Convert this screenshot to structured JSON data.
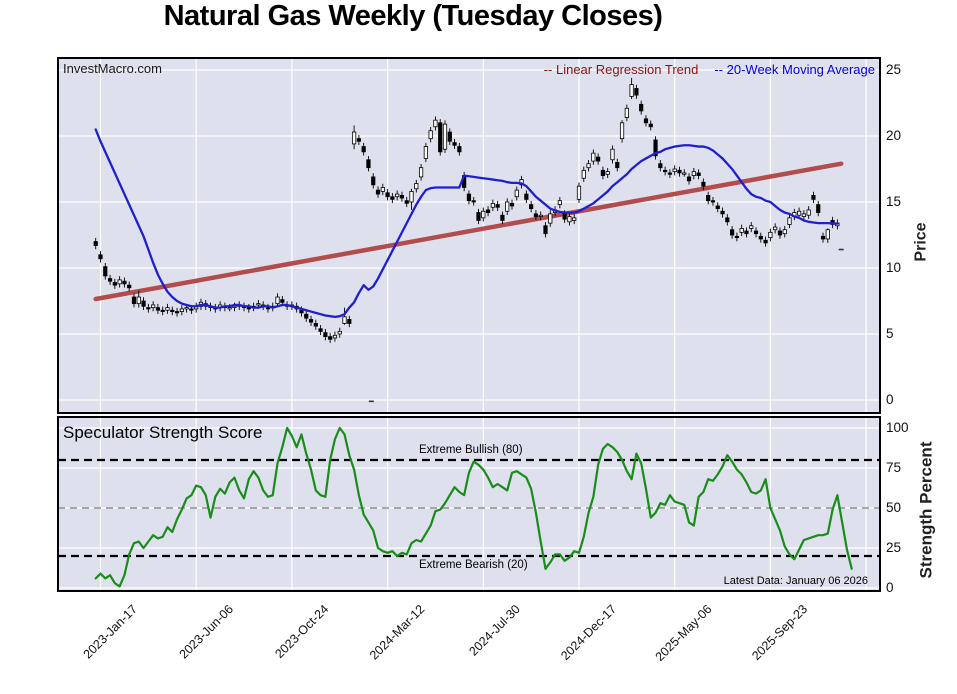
{
  "title": "Natural Gas Weekly (Tuesday Closes)",
  "watermark": "InvestMacro.com",
  "legend": {
    "regression_label": "-- Linear Regression Trend",
    "ma_label": "-- 20-Week Moving Average",
    "regression_text_color": "#8b1212",
    "ma_text_color": "#0000e6"
  },
  "price_panel": {
    "ylabel": "Price",
    "yticks": [
      0,
      5,
      10,
      15,
      20,
      25
    ]
  },
  "strength_panel": {
    "title": "Speculator Strength Score",
    "ylabel": "Strength Percent",
    "yticks": [
      0,
      25,
      50,
      75,
      100
    ],
    "upper_label": "Extreme Bullish (80)",
    "lower_label": "Extreme Bearish (20)",
    "latest_note": "Latest Data: January 06 2026"
  },
  "x_axis": {
    "labels": [
      "2023-Jan-17",
      "2023-Jun-06",
      "2023-Oct-24",
      "2024-Mar-12",
      "2024-Jul-30",
      "2024-Dec-17",
      "2025-May-06",
      "2025-Sep-23"
    ],
    "label_week_indices": [
      1,
      21,
      41,
      61,
      81,
      101,
      121,
      141
    ],
    "gridline_week_indices": [
      1,
      21,
      41,
      61,
      81,
      101,
      121,
      141,
      161
    ]
  },
  "colors": {
    "figure_bg": "#ffffff",
    "panel_bg": "#dee1ed",
    "grid": "#ffffff",
    "border": "#000000",
    "candle_up_fill": "#ffffff",
    "candle_down_fill": "#000000",
    "candle_stroke": "#000000",
    "ma_line": "#1f1fd0",
    "regression_line": "#b34d4d",
    "strength_line": "#1a8c1a",
    "extreme_dash": "#000000",
    "mid_dash": "#8f8f8f"
  },
  "chart_data": [
    {
      "type": "candlestick",
      "panel": "price",
      "x_unit": "weeks since 2023-Jan-10",
      "ylabel": "Price",
      "ylim": [
        0,
        25
      ],
      "grid": true,
      "candles_open_close": [
        [
          12.0,
          11.7
        ],
        [
          11.0,
          10.7
        ],
        [
          10.1,
          9.4
        ],
        [
          9.2,
          9.0
        ],
        [
          8.9,
          8.7
        ],
        [
          8.8,
          9.1
        ],
        [
          9.0,
          8.8
        ],
        [
          8.7,
          8.5
        ],
        [
          7.8,
          7.3
        ],
        [
          7.3,
          7.8
        ],
        [
          7.5,
          7.1
        ],
        [
          7.0,
          6.9
        ],
        [
          7.0,
          7.2
        ],
        [
          7.0,
          6.8
        ],
        [
          6.8,
          6.7
        ],
        [
          6.8,
          7.0
        ],
        [
          6.8,
          6.7
        ],
        [
          6.7,
          6.6
        ],
        [
          6.7,
          6.9
        ],
        [
          6.9,
          7.0
        ],
        [
          6.9,
          6.8
        ],
        [
          6.9,
          7.1
        ],
        [
          7.1,
          7.4
        ],
        [
          7.3,
          7.1
        ],
        [
          7.1,
          7.0
        ],
        [
          7.0,
          6.9
        ],
        [
          7.0,
          7.2
        ],
        [
          7.1,
          7.0
        ],
        [
          7.0,
          7.0
        ],
        [
          7.0,
          7.1
        ],
        [
          7.1,
          7.2
        ],
        [
          7.1,
          7.0
        ],
        [
          7.0,
          6.9
        ],
        [
          7.0,
          7.1
        ],
        [
          7.2,
          7.3
        ],
        [
          7.2,
          7.1
        ],
        [
          7.0,
          6.9
        ],
        [
          7.0,
          7.1
        ],
        [
          7.3,
          7.8
        ],
        [
          7.6,
          7.4
        ],
        [
          7.2,
          7.1
        ],
        [
          7.1,
          7.2
        ],
        [
          7.1,
          6.9
        ],
        [
          6.8,
          6.6
        ],
        [
          6.5,
          6.2
        ],
        [
          6.1,
          5.9
        ],
        [
          5.8,
          5.6
        ],
        [
          5.4,
          5.2
        ],
        [
          5.1,
          4.8
        ],
        [
          4.8,
          4.6
        ],
        [
          4.7,
          4.9
        ],
        [
          5.0,
          5.2
        ],
        [
          5.8,
          6.3
        ],
        [
          6.1,
          5.8
        ],
        [
          19.4,
          20.3
        ],
        [
          19.8,
          19.6
        ],
        [
          19.2,
          18.8
        ],
        [
          18.2,
          17.6
        ],
        [
          16.9,
          16.3
        ],
        [
          15.9,
          15.6
        ],
        [
          15.8,
          16.1
        ],
        [
          15.7,
          15.4
        ],
        [
          15.4,
          15.2
        ],
        [
          15.4,
          15.6
        ],
        [
          15.5,
          15.3
        ],
        [
          15.1,
          14.9
        ],
        [
          15.0,
          15.8
        ],
        [
          16.0,
          16.4
        ],
        [
          16.9,
          17.6
        ],
        [
          18.3,
          19.2
        ],
        [
          19.8,
          20.4
        ],
        [
          20.7,
          21.2
        ],
        [
          21.0,
          18.8
        ],
        [
          19.0,
          20.9
        ],
        [
          20.3,
          19.6
        ],
        [
          19.5,
          19.3
        ],
        [
          19.2,
          18.8
        ],
        [
          17.0,
          16.1
        ],
        [
          15.6,
          15.1
        ],
        [
          15.1,
          15.0
        ],
        [
          14.2,
          13.6
        ],
        [
          13.8,
          14.3
        ],
        [
          14.4,
          14.2
        ],
        [
          14.6,
          14.9
        ],
        [
          14.8,
          14.6
        ],
        [
          14.0,
          13.6
        ],
        [
          14.3,
          15.0
        ],
        [
          14.9,
          14.7
        ],
        [
          15.4,
          15.9
        ],
        [
          16.3,
          16.7
        ],
        [
          15.6,
          15.2
        ],
        [
          14.8,
          14.5
        ],
        [
          14.1,
          13.9
        ],
        [
          13.9,
          14.0
        ],
        [
          13.2,
          12.6
        ],
        [
          13.4,
          14.1
        ],
        [
          14.2,
          14.4
        ],
        [
          14.8,
          15.1
        ],
        [
          14.1,
          13.7
        ],
        [
          13.5,
          13.9
        ],
        [
          13.6,
          13.8
        ],
        [
          15.2,
          16.2
        ],
        [
          16.8,
          17.4
        ],
        [
          17.6,
          17.9
        ],
        [
          18.1,
          18.7
        ],
        [
          18.4,
          18.1
        ],
        [
          17.4,
          17.0
        ],
        [
          17.1,
          17.3
        ],
        [
          18.2,
          19.0
        ],
        [
          18.0,
          17.6
        ],
        [
          19.8,
          21.0
        ],
        [
          21.4,
          22.1
        ],
        [
          23.0,
          23.9
        ],
        [
          23.6,
          23.1
        ],
        [
          22.4,
          21.9
        ],
        [
          21.3,
          21.0
        ],
        [
          20.9,
          20.7
        ],
        [
          19.7,
          18.5
        ],
        [
          17.9,
          17.6
        ],
        [
          17.4,
          17.3
        ],
        [
          17.2,
          17.1
        ],
        [
          17.3,
          17.5
        ],
        [
          17.4,
          17.2
        ],
        [
          17.2,
          17.2
        ],
        [
          16.9,
          16.6
        ],
        [
          17.0,
          17.3
        ],
        [
          17.2,
          17.0
        ],
        [
          16.5,
          16.2
        ],
        [
          15.5,
          15.1
        ],
        [
          15.1,
          15.0
        ],
        [
          14.7,
          14.5
        ],
        [
          14.3,
          14.1
        ],
        [
          13.8,
          13.5
        ],
        [
          12.9,
          12.5
        ],
        [
          12.4,
          12.3
        ],
        [
          12.7,
          13.0
        ],
        [
          12.8,
          12.6
        ],
        [
          13.0,
          13.2
        ],
        [
          12.8,
          12.6
        ],
        [
          12.4,
          12.2
        ],
        [
          12.1,
          11.9
        ],
        [
          12.3,
          12.7
        ],
        [
          12.9,
          13.1
        ],
        [
          12.8,
          12.5
        ],
        [
          12.6,
          12.9
        ],
        [
          13.3,
          13.8
        ],
        [
          13.9,
          14.2
        ],
        [
          14.0,
          14.3
        ],
        [
          13.9,
          14.1
        ],
        [
          14.0,
          14.4
        ],
        [
          15.5,
          15.2
        ],
        [
          14.8,
          14.2
        ],
        [
          12.4,
          12.2
        ],
        [
          12.2,
          12.9
        ],
        [
          13.6,
          13.3
        ],
        [
          13.2,
          13.4
        ]
      ],
      "wick_overrides": {
        "9": [
          8.3,
          7.0
        ],
        "52": [
          7.0,
          5.7
        ],
        "54": [
          20.8,
          19.0
        ],
        "66": [
          16.0,
          14.4
        ],
        "110": [
          21.2,
          19.5
        ],
        "112": [
          24.4,
          22.8
        ],
        "153": [
          13.0,
          11.9
        ]
      },
      "stray_dashes": [
        [
          57.6,
          -0.1
        ],
        [
          155.8,
          11.4
        ]
      ],
      "series": [
        {
          "name": "20-Week Moving Average",
          "values": [
            20.5,
            19.6,
            18.8,
            18.0,
            17.2,
            16.4,
            15.6,
            14.8,
            14.0,
            13.2,
            12.4,
            11.4,
            10.4,
            9.5,
            8.8,
            8.2,
            7.8,
            7.5,
            7.3,
            7.2,
            7.1,
            7.1,
            7.2,
            7.2,
            7.1,
            7.0,
            7.0,
            7.1,
            7.1,
            7.2,
            7.2,
            7.1,
            7.1,
            7.0,
            7.0,
            7.1,
            7.1,
            7.0,
            7.1,
            7.2,
            7.2,
            7.1,
            7.0,
            6.9,
            6.8,
            6.7,
            6.6,
            6.5,
            6.4,
            6.35,
            6.3,
            6.35,
            6.5,
            7.0,
            7.4,
            8.1,
            8.7,
            8.35,
            8.6,
            9.2,
            9.9,
            10.6,
            11.3,
            12.0,
            12.7,
            13.4,
            14.1,
            14.8,
            15.4,
            15.9,
            16.05,
            16.1,
            16.1,
            16.1,
            16.1,
            16.1,
            16.1,
            17.0,
            16.95,
            16.9,
            16.85,
            16.8,
            16.75,
            16.7,
            16.65,
            16.6,
            16.5,
            16.45,
            16.45,
            16.4,
            16.2,
            15.8,
            15.4,
            15.1,
            14.8,
            14.5,
            14.35,
            14.25,
            14.2,
            14.2,
            14.2,
            14.3,
            14.5,
            14.7,
            14.9,
            15.2,
            15.5,
            15.8,
            16.2,
            16.5,
            16.8,
            17.1,
            17.5,
            17.8,
            18.1,
            18.3,
            18.5,
            18.7,
            18.8,
            19.0,
            19.1,
            19.2,
            19.25,
            19.3,
            19.3,
            19.25,
            19.2,
            19.2,
            19.1,
            18.9,
            18.6,
            18.3,
            17.9,
            17.5,
            17.0,
            16.5,
            16.0,
            15.6,
            15.4,
            15.3,
            15.1,
            15.0,
            14.7,
            14.4,
            14.2,
            14.1,
            13.9,
            13.8,
            13.6,
            13.5,
            13.45,
            13.4,
            13.4,
            13.4,
            13.38,
            13.36
          ]
        },
        {
          "name": "Linear Regression Trend",
          "start": [
            0,
            7.65
          ],
          "end": [
            155.8,
            17.9
          ]
        }
      ]
    },
    {
      "type": "line",
      "panel": "strength",
      "name": "Speculator Strength Score",
      "ylabel": "Strength Percent",
      "ylim": [
        0,
        100
      ],
      "levels": {
        "extreme_bullish": 80,
        "midline": 50,
        "extreme_bearish": 20
      },
      "values": [
        6,
        9,
        6,
        8,
        3,
        1,
        8,
        21,
        28,
        29,
        25,
        29,
        33,
        31,
        32,
        38,
        35,
        43,
        49,
        56,
        58,
        64,
        63,
        58,
        44,
        57,
        62,
        59,
        66,
        69,
        61,
        56,
        68,
        73,
        69,
        61,
        57,
        58,
        78,
        88,
        100,
        95,
        88,
        96,
        84,
        74,
        61,
        58,
        57,
        80,
        93,
        100,
        96,
        83,
        74,
        58,
        46,
        41,
        36,
        25,
        23,
        22,
        23,
        20,
        22,
        21,
        28,
        30,
        29,
        34,
        39,
        48,
        49,
        53,
        58,
        63,
        60,
        58,
        72,
        79,
        77,
        74,
        69,
        63,
        65,
        63,
        61,
        72,
        73,
        71,
        69,
        62,
        47,
        29,
        12,
        16,
        21,
        21,
        17,
        19,
        23,
        22,
        32,
        47,
        57,
        77,
        87,
        90,
        88,
        85,
        80,
        73,
        68,
        84,
        78,
        62,
        44,
        47,
        53,
        52,
        58,
        54,
        53,
        52,
        41,
        39,
        57,
        60,
        68,
        67,
        71,
        76,
        83,
        79,
        74,
        71,
        66,
        60,
        59,
        61,
        68,
        50,
        43,
        36,
        26,
        21,
        18,
        24,
        30,
        31,
        32,
        33,
        33,
        34,
        49,
        58,
        41,
        24,
        12
      ]
    }
  ]
}
